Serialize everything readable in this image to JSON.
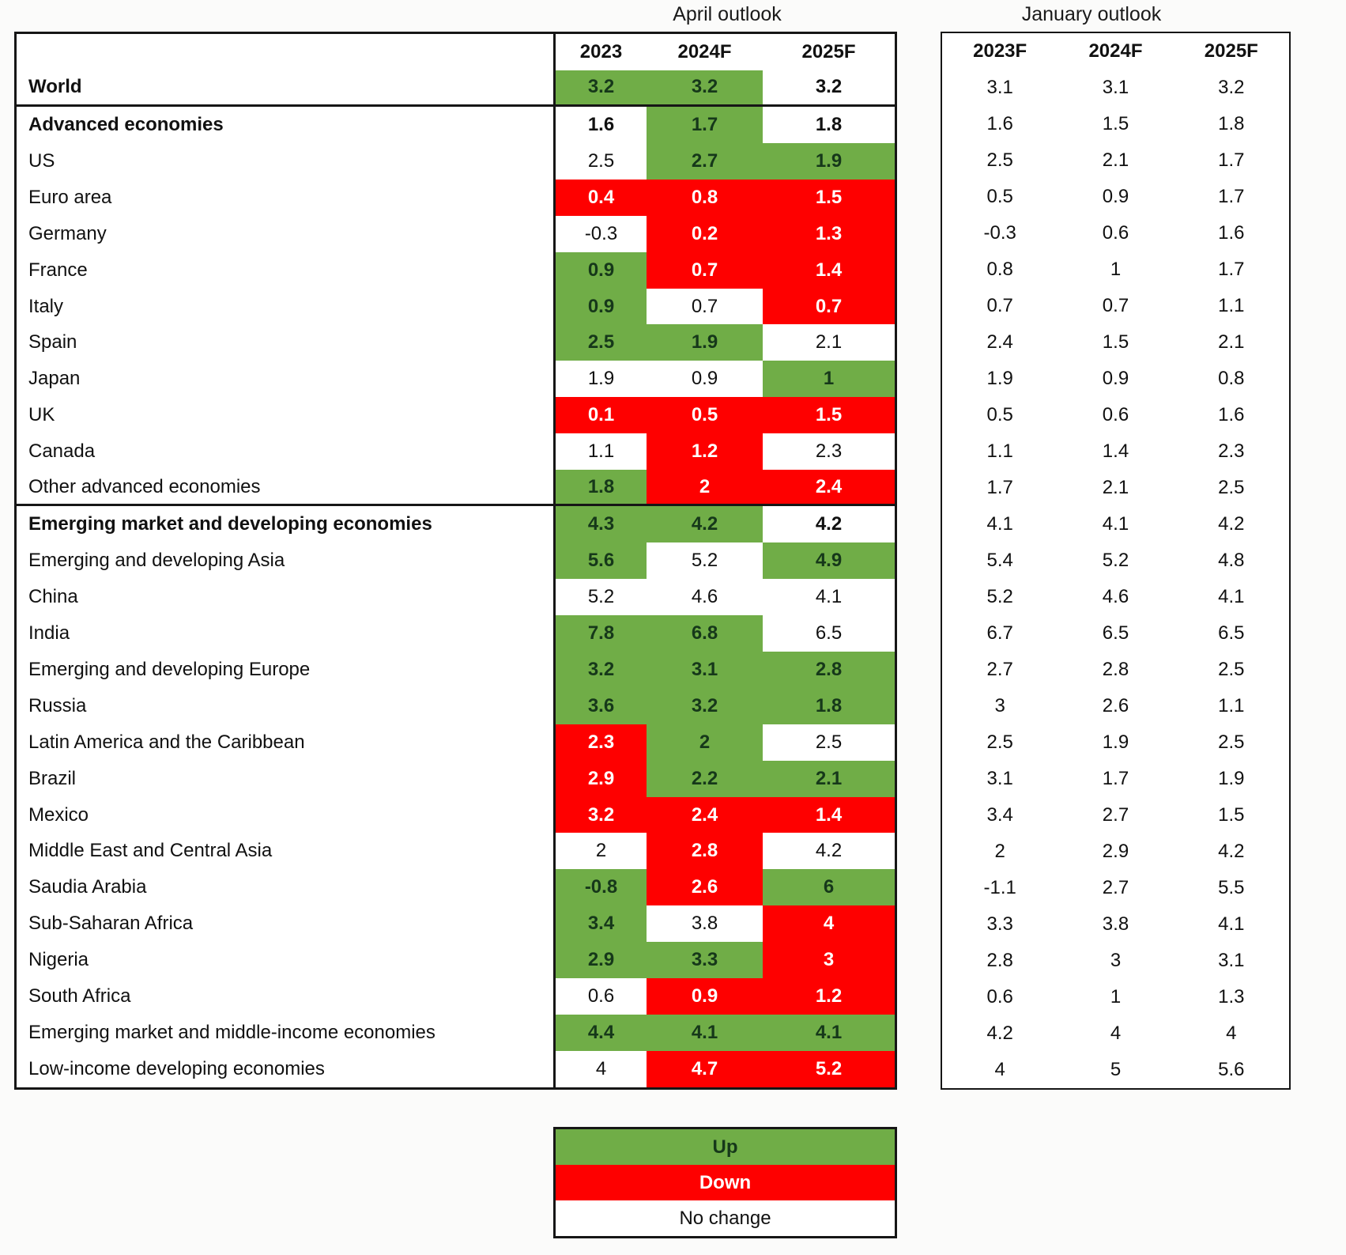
{
  "titles": {
    "april": "April outlook",
    "january": "January outlook"
  },
  "chart_data": {
    "type": "table",
    "april_headers": [
      "2023",
      "2024F",
      "2025F"
    ],
    "january_headers": [
      "2023F",
      "2024F",
      "2025F"
    ],
    "colors": {
      "up": "#70AD47",
      "down": "#FE0000",
      "no_change": "#FFFFFF",
      "border": "#161616"
    },
    "legend": [
      {
        "label": "Up",
        "change": "up"
      },
      {
        "label": "Down",
        "change": "down"
      },
      {
        "label": "No change",
        "change": "none"
      }
    ],
    "rows": [
      {
        "name": "World",
        "bold": true,
        "rule_below": true,
        "april": [
          {
            "value": "3.2",
            "change": "up"
          },
          {
            "value": "3.2",
            "change": "up"
          },
          {
            "value": "3.2",
            "change": "none"
          }
        ],
        "january": [
          "3.1",
          "3.1",
          "3.2"
        ]
      },
      {
        "name": "Advanced economies",
        "bold": true,
        "rule_below": false,
        "april": [
          {
            "value": "1.6",
            "change": "none"
          },
          {
            "value": "1.7",
            "change": "up"
          },
          {
            "value": "1.8",
            "change": "none"
          }
        ],
        "january": [
          "1.6",
          "1.5",
          "1.8"
        ]
      },
      {
        "name": "US",
        "bold": false,
        "rule_below": false,
        "april": [
          {
            "value": "2.5",
            "change": "none"
          },
          {
            "value": "2.7",
            "change": "up"
          },
          {
            "value": "1.9",
            "change": "up"
          }
        ],
        "january": [
          "2.5",
          "2.1",
          "1.7"
        ]
      },
      {
        "name": "Euro area",
        "bold": false,
        "rule_below": false,
        "april": [
          {
            "value": "0.4",
            "change": "down"
          },
          {
            "value": "0.8",
            "change": "down"
          },
          {
            "value": "1.5",
            "change": "down"
          }
        ],
        "january": [
          "0.5",
          "0.9",
          "1.7"
        ]
      },
      {
        "name": "Germany",
        "bold": false,
        "rule_below": false,
        "april": [
          {
            "value": "-0.3",
            "change": "none"
          },
          {
            "value": "0.2",
            "change": "down"
          },
          {
            "value": "1.3",
            "change": "down"
          }
        ],
        "january": [
          "-0.3",
          "0.6",
          "1.6"
        ]
      },
      {
        "name": "France",
        "bold": false,
        "rule_below": false,
        "april": [
          {
            "value": "0.9",
            "change": "up"
          },
          {
            "value": "0.7",
            "change": "down"
          },
          {
            "value": "1.4",
            "change": "down"
          }
        ],
        "january": [
          "0.8",
          "1",
          "1.7"
        ]
      },
      {
        "name": "Italy",
        "bold": false,
        "rule_below": false,
        "april": [
          {
            "value": "0.9",
            "change": "up"
          },
          {
            "value": "0.7",
            "change": "none"
          },
          {
            "value": "0.7",
            "change": "down"
          }
        ],
        "january": [
          "0.7",
          "0.7",
          "1.1"
        ]
      },
      {
        "name": "Spain",
        "bold": false,
        "rule_below": false,
        "april": [
          {
            "value": "2.5",
            "change": "up"
          },
          {
            "value": "1.9",
            "change": "up"
          },
          {
            "value": "2.1",
            "change": "none"
          }
        ],
        "january": [
          "2.4",
          "1.5",
          "2.1"
        ]
      },
      {
        "name": "Japan",
        "bold": false,
        "rule_below": false,
        "april": [
          {
            "value": "1.9",
            "change": "none"
          },
          {
            "value": "0.9",
            "change": "none"
          },
          {
            "value": "1",
            "change": "up"
          }
        ],
        "january": [
          "1.9",
          "0.9",
          "0.8"
        ]
      },
      {
        "name": "UK",
        "bold": false,
        "rule_below": false,
        "april": [
          {
            "value": "0.1",
            "change": "down"
          },
          {
            "value": "0.5",
            "change": "down"
          },
          {
            "value": "1.5",
            "change": "down"
          }
        ],
        "january": [
          "0.5",
          "0.6",
          "1.6"
        ]
      },
      {
        "name": "Canada",
        "bold": false,
        "rule_below": false,
        "april": [
          {
            "value": "1.1",
            "change": "none"
          },
          {
            "value": "1.2",
            "change": "down"
          },
          {
            "value": "2.3",
            "change": "none"
          }
        ],
        "january": [
          "1.1",
          "1.4",
          "2.3"
        ]
      },
      {
        "name": "Other advanced economies",
        "bold": false,
        "rule_below": true,
        "april": [
          {
            "value": "1.8",
            "change": "up"
          },
          {
            "value": "2",
            "change": "down"
          },
          {
            "value": "2.4",
            "change": "down"
          }
        ],
        "january": [
          "1.7",
          "2.1",
          "2.5"
        ]
      },
      {
        "name": "Emerging market and developing economies",
        "bold": true,
        "rule_below": false,
        "april": [
          {
            "value": "4.3",
            "change": "up"
          },
          {
            "value": "4.2",
            "change": "up"
          },
          {
            "value": "4.2",
            "change": "none"
          }
        ],
        "january": [
          "4.1",
          "4.1",
          "4.2"
        ]
      },
      {
        "name": "Emerging and developing Asia",
        "bold": false,
        "rule_below": false,
        "april": [
          {
            "value": "5.6",
            "change": "up"
          },
          {
            "value": "5.2",
            "change": "none"
          },
          {
            "value": "4.9",
            "change": "up"
          }
        ],
        "january": [
          "5.4",
          "5.2",
          "4.8"
        ]
      },
      {
        "name": "China",
        "bold": false,
        "rule_below": false,
        "april": [
          {
            "value": "5.2",
            "change": "none"
          },
          {
            "value": "4.6",
            "change": "none"
          },
          {
            "value": "4.1",
            "change": "none"
          }
        ],
        "january": [
          "5.2",
          "4.6",
          "4.1"
        ]
      },
      {
        "name": "India",
        "bold": false,
        "rule_below": false,
        "april": [
          {
            "value": "7.8",
            "change": "up"
          },
          {
            "value": "6.8",
            "change": "up"
          },
          {
            "value": "6.5",
            "change": "none"
          }
        ],
        "january": [
          "6.7",
          "6.5",
          "6.5"
        ]
      },
      {
        "name": "Emerging and developing Europe",
        "bold": false,
        "rule_below": false,
        "april": [
          {
            "value": "3.2",
            "change": "up"
          },
          {
            "value": "3.1",
            "change": "up"
          },
          {
            "value": "2.8",
            "change": "up"
          }
        ],
        "january": [
          "2.7",
          "2.8",
          "2.5"
        ]
      },
      {
        "name": "Russia",
        "bold": false,
        "rule_below": false,
        "april": [
          {
            "value": "3.6",
            "change": "up"
          },
          {
            "value": "3.2",
            "change": "up"
          },
          {
            "value": "1.8",
            "change": "up"
          }
        ],
        "january": [
          "3",
          "2.6",
          "1.1"
        ]
      },
      {
        "name": "Latin America and the Caribbean",
        "bold": false,
        "rule_below": false,
        "april": [
          {
            "value": "2.3",
            "change": "down"
          },
          {
            "value": "2",
            "change": "up"
          },
          {
            "value": "2.5",
            "change": "none"
          }
        ],
        "january": [
          "2.5",
          "1.9",
          "2.5"
        ]
      },
      {
        "name": "Brazil",
        "bold": false,
        "rule_below": false,
        "april": [
          {
            "value": "2.9",
            "change": "down"
          },
          {
            "value": "2.2",
            "change": "up"
          },
          {
            "value": "2.1",
            "change": "up"
          }
        ],
        "january": [
          "3.1",
          "1.7",
          "1.9"
        ]
      },
      {
        "name": "Mexico",
        "bold": false,
        "rule_below": false,
        "april": [
          {
            "value": "3.2",
            "change": "down"
          },
          {
            "value": "2.4",
            "change": "down"
          },
          {
            "value": "1.4",
            "change": "down"
          }
        ],
        "january": [
          "3.4",
          "2.7",
          "1.5"
        ]
      },
      {
        "name": "Middle East and Central Asia",
        "bold": false,
        "rule_below": false,
        "april": [
          {
            "value": "2",
            "change": "none"
          },
          {
            "value": "2.8",
            "change": "down"
          },
          {
            "value": "4.2",
            "change": "none"
          }
        ],
        "january": [
          "2",
          "2.9",
          "4.2"
        ]
      },
      {
        "name": "Saudia Arabia",
        "bold": false,
        "rule_below": false,
        "april": [
          {
            "value": "-0.8",
            "change": "up"
          },
          {
            "value": "2.6",
            "change": "down"
          },
          {
            "value": "6",
            "change": "up"
          }
        ],
        "january": [
          "-1.1",
          "2.7",
          "5.5"
        ]
      },
      {
        "name": "Sub-Saharan Africa",
        "bold": false,
        "rule_below": false,
        "april": [
          {
            "value": "3.4",
            "change": "up"
          },
          {
            "value": "3.8",
            "change": "none"
          },
          {
            "value": "4",
            "change": "down"
          }
        ],
        "january": [
          "3.3",
          "3.8",
          "4.1"
        ]
      },
      {
        "name": "Nigeria",
        "bold": false,
        "rule_below": false,
        "april": [
          {
            "value": "2.9",
            "change": "up"
          },
          {
            "value": "3.3",
            "change": "up"
          },
          {
            "value": "3",
            "change": "down"
          }
        ],
        "january": [
          "2.8",
          "3",
          "3.1"
        ]
      },
      {
        "name": "South Africa",
        "bold": false,
        "rule_below": false,
        "april": [
          {
            "value": "0.6",
            "change": "none"
          },
          {
            "value": "0.9",
            "change": "down"
          },
          {
            "value": "1.2",
            "change": "down"
          }
        ],
        "january": [
          "0.6",
          "1",
          "1.3"
        ]
      },
      {
        "name": "Emerging market and middle-income economies",
        "bold": false,
        "rule_below": false,
        "april": [
          {
            "value": "4.4",
            "change": "up"
          },
          {
            "value": "4.1",
            "change": "up"
          },
          {
            "value": "4.1",
            "change": "up"
          }
        ],
        "january": [
          "4.2",
          "4",
          "4"
        ]
      },
      {
        "name": "Low-income developing economies",
        "bold": false,
        "rule_below": false,
        "april": [
          {
            "value": "4",
            "change": "none"
          },
          {
            "value": "4.7",
            "change": "down"
          },
          {
            "value": "5.2",
            "change": "down"
          }
        ],
        "january": [
          "4",
          "5",
          "5.6"
        ]
      }
    ]
  }
}
